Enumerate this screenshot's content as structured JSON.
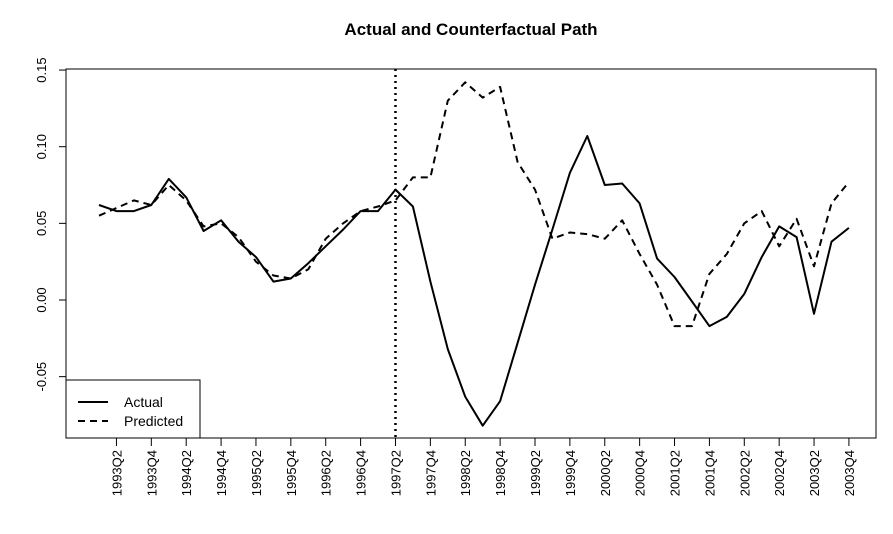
{
  "chart_data": {
    "type": "line",
    "title": "Actual and Counterfactual Path",
    "xlabel": "",
    "ylabel": "",
    "ylim": [
      -0.09,
      0.152
    ],
    "yticks": [
      -0.05,
      0.0,
      0.05,
      0.1,
      0.15
    ],
    "ytick_labels": [
      "-0.05",
      "0.00",
      "0.05",
      "0.10",
      "0.15"
    ],
    "x": [
      "1993Q1",
      "1993Q2",
      "1993Q3",
      "1993Q4",
      "1994Q1",
      "1994Q2",
      "1994Q3",
      "1994Q4",
      "1995Q1",
      "1995Q2",
      "1995Q3",
      "1995Q4",
      "1996Q1",
      "1996Q2",
      "1996Q3",
      "1996Q4",
      "1997Q1",
      "1997Q2",
      "1997Q3",
      "1997Q4",
      "1998Q1",
      "1998Q2",
      "1998Q3",
      "1998Q4",
      "1999Q1",
      "1999Q2",
      "1999Q3",
      "1999Q4",
      "2000Q1",
      "2000Q2",
      "2000Q3",
      "2000Q4",
      "2001Q1",
      "2001Q2",
      "2001Q3",
      "2001Q4",
      "2002Q1",
      "2002Q2",
      "2002Q3",
      "2002Q4",
      "2003Q1",
      "2003Q2",
      "2003Q3",
      "2003Q4"
    ],
    "xtick_labels": [
      "1993Q2",
      "1993Q4",
      "1994Q2",
      "1994Q4",
      "1995Q2",
      "1995Q4",
      "1996Q2",
      "1996Q4",
      "1997Q2",
      "1997Q4",
      "1998Q2",
      "1998Q4",
      "1999Q2",
      "1999Q4",
      "2000Q2",
      "2000Q4",
      "2001Q2",
      "2001Q4",
      "2002Q2",
      "2002Q4",
      "2003Q2",
      "2003Q4"
    ],
    "vline_at": "1997Q2",
    "series": [
      {
        "name": "Actual",
        "style": "solid",
        "color": "#000000",
        "values": [
          0.062,
          0.058,
          0.058,
          0.062,
          0.079,
          0.067,
          0.045,
          0.052,
          0.038,
          0.028,
          0.012,
          0.014,
          0.024,
          0.035,
          0.046,
          0.058,
          0.058,
          0.072,
          0.061,
          0.012,
          -0.032,
          -0.063,
          -0.082,
          -0.066,
          -0.028,
          0.01,
          0.046,
          0.083,
          0.107,
          0.075,
          0.076,
          0.063,
          0.027,
          0.015,
          -0.001,
          -0.017,
          -0.011,
          0.004,
          0.028,
          0.048,
          0.041,
          -0.009,
          0.038,
          0.047
        ]
      },
      {
        "name": "Predicted",
        "style": "dashed",
        "color": "#000000",
        "values": [
          0.055,
          0.06,
          0.065,
          0.062,
          0.075,
          0.065,
          0.048,
          0.05,
          0.041,
          0.025,
          0.016,
          0.014,
          0.02,
          0.04,
          0.05,
          0.058,
          0.061,
          0.065,
          0.08,
          0.08,
          0.13,
          0.142,
          0.132,
          0.139,
          0.09,
          0.072,
          0.04,
          0.044,
          0.043,
          0.04,
          0.052,
          0.03,
          0.01,
          -0.017,
          -0.017,
          0.017,
          0.03,
          0.05,
          0.058,
          0.035,
          0.053,
          0.022,
          0.063,
          0.077
        ]
      }
    ],
    "legend_position": "bottom-left",
    "grid": false
  }
}
